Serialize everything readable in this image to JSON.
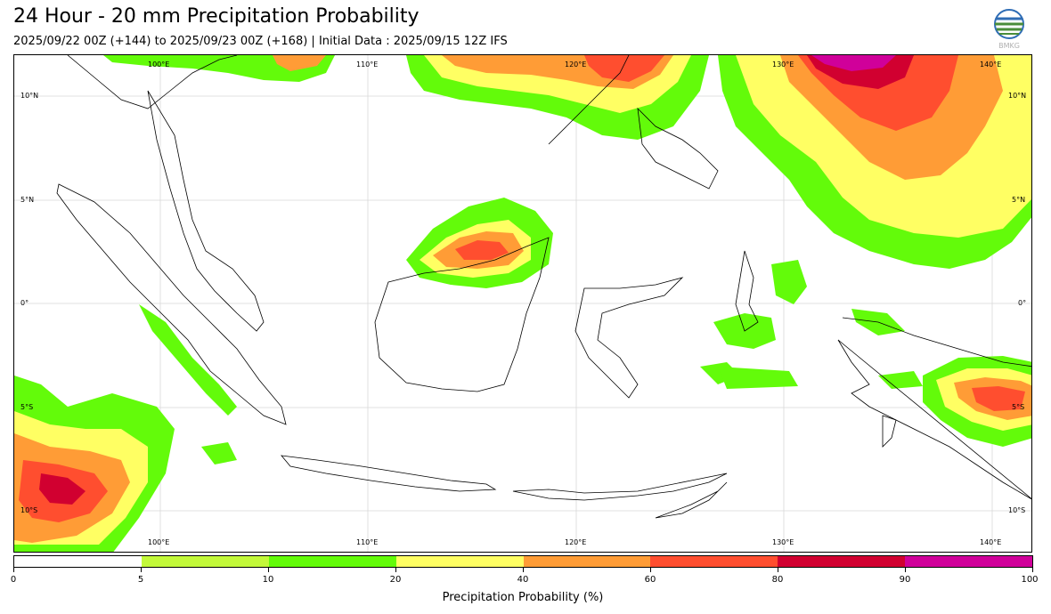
{
  "header": {
    "title": "24 Hour - 20 mm Precipitation Probability",
    "subtitle": "2025/09/22 00Z (+144) to 2025/09/23 00Z (+168) | Initial Data : 2025/09/15 12Z IFS",
    "logo_text": "BMKG"
  },
  "map": {
    "lon_range": [
      93,
      142
    ],
    "lat_range": [
      -12,
      12
    ],
    "lon_labels": [
      "100°E",
      "110°E",
      "120°E",
      "130°E",
      "140°E"
    ],
    "lat_labels": [
      "10°N",
      "5°N",
      "0°",
      "5°S",
      "10°S"
    ]
  },
  "colorbar": {
    "title": "Precipitation Probability (%)",
    "ticks": [
      "0",
      "5",
      "10",
      "20",
      "40",
      "60",
      "80",
      "90",
      "100"
    ],
    "colors": [
      "#ffffff",
      "#c3f93a",
      "#63fb0a",
      "#ffff63",
      "#ff9c36",
      "#ff4e2f",
      "#d10030",
      "#d0009a"
    ]
  }
}
